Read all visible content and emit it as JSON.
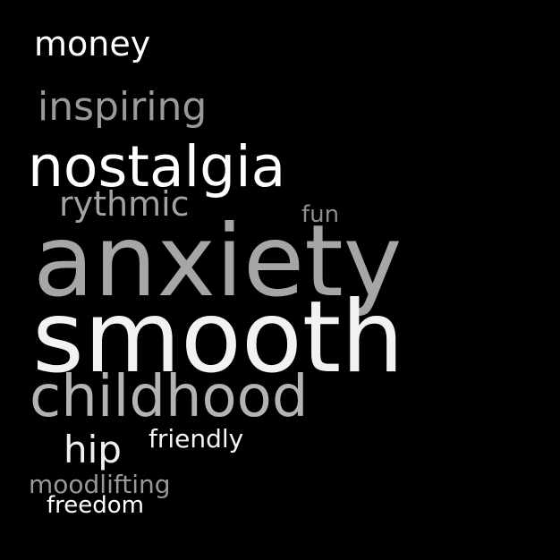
{
  "background": "#000000",
  "words": [
    {
      "text": "money",
      "color": "#ffffff"
    },
    {
      "text": "inspiring",
      "color": "#9a9a9a"
    },
    {
      "text": "nostalgia",
      "color": "#ffffff"
    },
    {
      "text": "rythmic",
      "color": "#a3a3a3"
    },
    {
      "text": "fun",
      "color": "#8e8e8e"
    },
    {
      "text": "anxiety",
      "color": "#a6a6a6"
    },
    {
      "text": "smooth",
      "color": "#f2f2f2"
    },
    {
      "text": "childhood",
      "color": "#b4b4b4"
    },
    {
      "text": "hip",
      "color": "#f0f0f0"
    },
    {
      "text": "friendly",
      "color": "#f5f5f5"
    },
    {
      "text": "moodlifting",
      "color": "#999999"
    },
    {
      "text": "freedom",
      "color": "#ffffff"
    }
  ]
}
